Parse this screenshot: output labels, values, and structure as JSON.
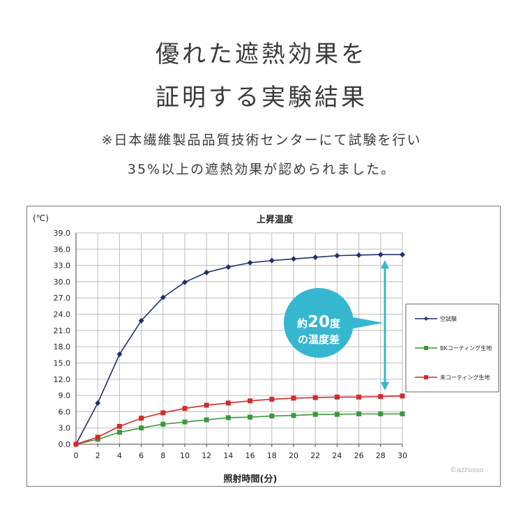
{
  "heading": {
    "line1": "優れた遮熱効果を",
    "line2": "証明する実験結果"
  },
  "note": {
    "line1": "※日本繊維製品品質技術センターにて試験を行い",
    "line2": "35%以上の遮熱効果が認められました。"
  },
  "callout": {
    "line1_prefix": "約",
    "line1_number": "20",
    "line1_suffix": "度",
    "line2": "の温度差"
  },
  "watermark": "©azrosso",
  "colors": {
    "navy": "#1f2f6e",
    "green": "#3a9a3a",
    "red": "#d42a2a",
    "callout": "#36b7d0",
    "grid": "#bdbdbd"
  },
  "chart_data": {
    "type": "line",
    "title": "上昇温度",
    "ylabel": "(℃)",
    "xlabel": "照射時間(分)",
    "x": [
      0,
      2,
      4,
      6,
      8,
      10,
      12,
      14,
      16,
      18,
      20,
      22,
      24,
      26,
      28,
      30
    ],
    "xticks": [
      "0",
      "2",
      "4",
      "6",
      "8",
      "10",
      "12",
      "14",
      "16",
      "18",
      "20",
      "22",
      "24",
      "26",
      "28",
      "30"
    ],
    "ylim": [
      0,
      39
    ],
    "yticks": [
      "0.0",
      "3.0",
      "6.0",
      "9.0",
      "12.0",
      "15.0",
      "18.0",
      "21.0",
      "24.0",
      "27.0",
      "30.0",
      "33.0",
      "36.0",
      "39.0"
    ],
    "grid": true,
    "legend_position": "right",
    "series": [
      {
        "name": "空試験",
        "color": "#1f2f6e",
        "marker": "diamond",
        "values": [
          0,
          7.6,
          16.6,
          22.8,
          27.1,
          29.9,
          31.7,
          32.7,
          33.5,
          33.9,
          34.2,
          34.5,
          34.8,
          34.9,
          35.0,
          35.0
        ]
      },
      {
        "name": "BKコーティング生地",
        "color": "#3a9a3a",
        "marker": "square",
        "values": [
          0,
          0.9,
          2.2,
          3.0,
          3.7,
          4.1,
          4.5,
          4.9,
          5.0,
          5.2,
          5.3,
          5.5,
          5.5,
          5.6,
          5.6,
          5.6
        ]
      },
      {
        "name": "未コーティング生地",
        "color": "#d42a2a",
        "marker": "square",
        "values": [
          0,
          1.3,
          3.3,
          4.8,
          5.8,
          6.6,
          7.2,
          7.6,
          8.0,
          8.3,
          8.5,
          8.6,
          8.7,
          8.7,
          8.8,
          8.9
        ]
      }
    ]
  }
}
